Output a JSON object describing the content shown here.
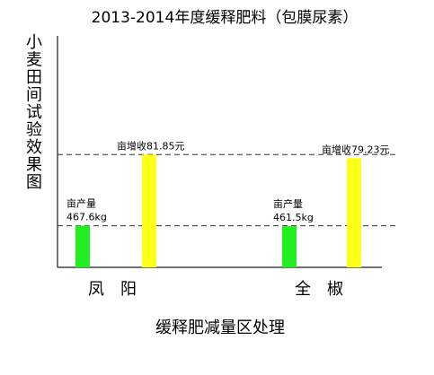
{
  "chart_data": {
    "type": "bar",
    "title": "2013-2014年度缓释肥料（包膜尿素）",
    "ylabel": "小麦田间试验效果图",
    "xlabel": "缓释肥减量区处理",
    "categories": [
      "凤　阳",
      "全　椒"
    ],
    "series": [
      {
        "name": "亩产量",
        "color": "#22ee22",
        "values": [
          467.6,
          461.5
        ],
        "value_labels": [
          "467.6kg",
          "461.5kg"
        ]
      },
      {
        "name": "亩增收",
        "color": "#ffff1a",
        "values": [
          81.85,
          79.23
        ],
        "value_labels": [
          "81.85元",
          "79.23元"
        ],
        "axis": "y2"
      }
    ],
    "ylim": [
      0,
      2600
    ],
    "y2lim": [
      0,
      168
    ]
  }
}
